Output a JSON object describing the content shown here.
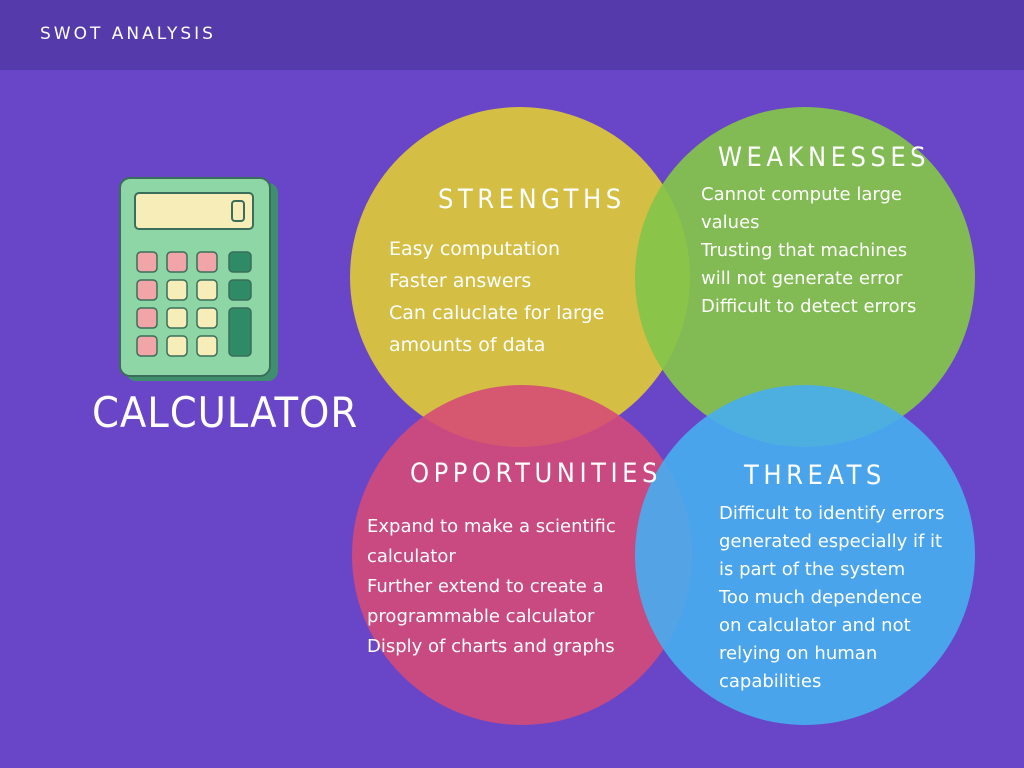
{
  "header": {
    "title": "SWOT ANALYSIS"
  },
  "subject": {
    "title": "CALCULATOR"
  },
  "strengths": {
    "title": "STRENGTHS",
    "lines": [
      "Easy computation",
      "Faster answers",
      "Can caluclate for large",
      "amounts of data"
    ],
    "color": "#d8c23e"
  },
  "weaknesses": {
    "title": "WEAKNESSES",
    "lines": [
      "Cannot compute large",
      "values",
      "Trusting that machines",
      "will not generate error",
      "Difficult to detect errors"
    ],
    "color": "#84c44a"
  },
  "opportunities": {
    "title": "OPPORTUNITIES",
    "lines": [
      "Expand to make a scientific",
      "calculator",
      "Further extend to create a",
      "programmable calculator",
      "Disply of charts and graphs"
    ],
    "color": "#d64a76"
  },
  "threats": {
    "title": "THREATS",
    "lines": [
      "Difficult to identify errors",
      "generated especially if it",
      "is part of the system",
      "Too much dependence",
      "on calculator and not",
      "relying on human",
      "capabilities"
    ],
    "color": "#47aef0"
  },
  "icons": {
    "calculator": "calculator-icon"
  }
}
